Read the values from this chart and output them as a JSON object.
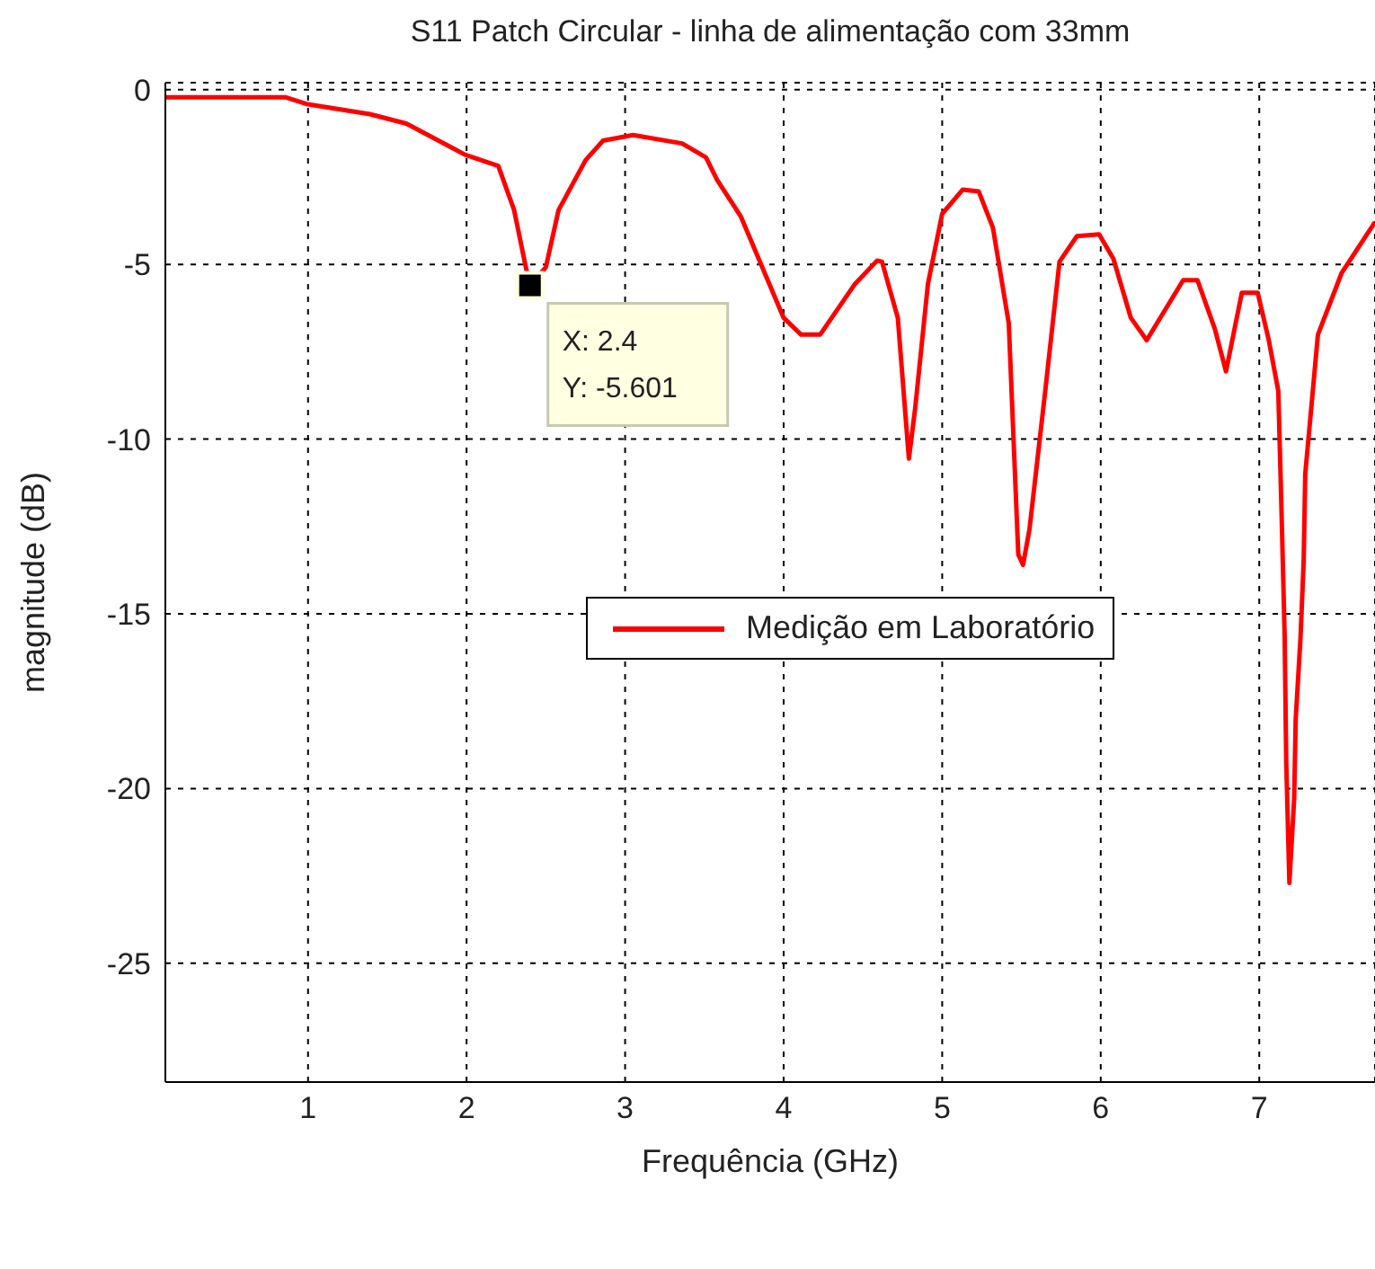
{
  "chart_data": {
    "type": "line",
    "title": "S11 Patch Circular - linha de alimentação com 33mm",
    "xlabel": "Frequência (GHz)",
    "ylabel": "magnitude (dB)",
    "x": [
      0.1,
      0.86,
      0.99,
      1.39,
      1.62,
      1.99,
      2.2,
      2.3,
      2.37,
      2.4,
      2.5,
      2.58,
      2.75,
      2.86,
      3.05,
      3.36,
      3.51,
      3.58,
      3.73,
      4.0,
      4.11,
      4.23,
      4.45,
      4.59,
      4.62,
      4.72,
      4.79,
      4.83,
      4.91,
      5.0,
      5.13,
      5.23,
      5.32,
      5.42,
      5.48,
      5.51,
      5.55,
      5.65,
      5.74,
      5.85,
      5.99,
      6.08,
      6.19,
      6.29,
      6.52,
      6.61,
      6.72,
      6.79,
      6.89,
      6.99,
      7.06,
      7.12,
      7.14,
      7.16,
      7.17,
      7.19,
      7.22,
      7.23,
      7.26,
      7.28,
      7.29,
      7.37,
      7.52,
      7.73
    ],
    "series": [
      {
        "name": "Medição em Laboratório",
        "color": "#ff0000",
        "values": [
          -0.22,
          -0.22,
          -0.41,
          -0.7,
          -0.97,
          -1.86,
          -2.18,
          -3.45,
          -5.0,
          -5.601,
          -5.08,
          -3.45,
          -2.02,
          -1.46,
          -1.3,
          -1.54,
          -1.94,
          -2.58,
          -3.63,
          -6.53,
          -7.01,
          -7.01,
          -5.56,
          -4.89,
          -4.92,
          -6.53,
          -10.56,
          -9.1,
          -5.56,
          -3.55,
          -2.86,
          -2.91,
          -3.95,
          -6.69,
          -13.3,
          -13.6,
          -12.6,
          -8.62,
          -4.92,
          -4.19,
          -4.14,
          -4.84,
          -6.53,
          -7.17,
          -5.45,
          -5.45,
          -6.85,
          -8.06,
          -5.81,
          -5.81,
          -7.17,
          -8.62,
          -12.0,
          -15.6,
          -19.2,
          -22.7,
          -20.3,
          -18.0,
          -15.7,
          -13.5,
          -11.0,
          -7.01,
          -5.24,
          -3.79
        ]
      }
    ],
    "xlim": [
      0.1,
      7.73
    ],
    "ylim": [
      -28.4,
      0.2
    ],
    "xticks": [
      1,
      2,
      3,
      4,
      5,
      6,
      7
    ],
    "yticks": [
      -25,
      -20,
      -15,
      -10,
      -5,
      0
    ],
    "grid": true,
    "legend": "right",
    "marker": "none",
    "line_style": "solid",
    "annotations": [
      {
        "text": "X: 2.4\nY: -5.601",
        "x": 2.4,
        "y": -5.601
      }
    ]
  }
}
